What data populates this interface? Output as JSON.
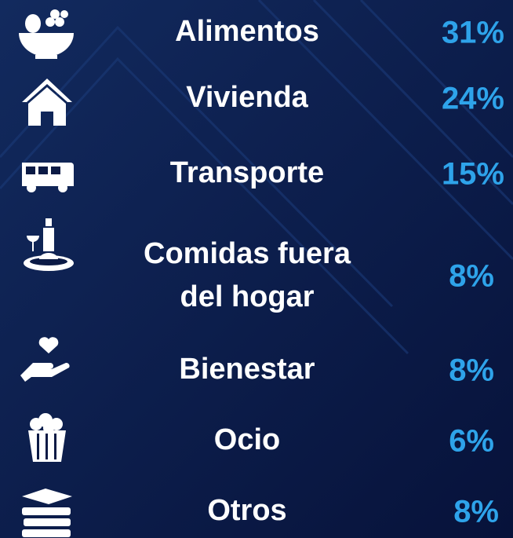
{
  "items": [
    {
      "label": "Alimentos",
      "value": "31%"
    },
    {
      "label": "Vivienda",
      "value": "24%"
    },
    {
      "label": "Transporte",
      "value": "15%"
    },
    {
      "label": [
        "Comidas fuera",
        "del hogar"
      ],
      "value": "8%"
    },
    {
      "label": "Bienestar",
      "value": "8%"
    },
    {
      "label": "Ocio",
      "value": "6%"
    },
    {
      "label": "Otros",
      "value": "8%"
    }
  ]
}
